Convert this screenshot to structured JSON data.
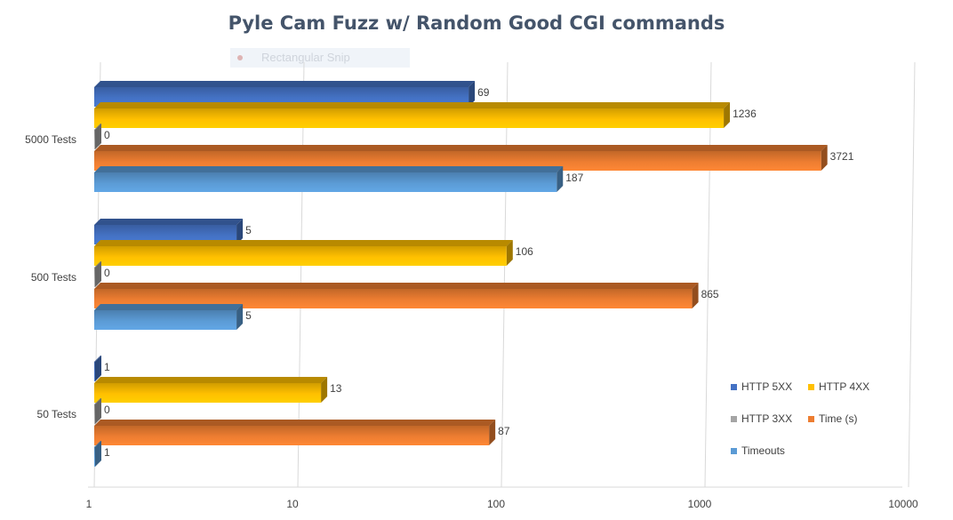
{
  "overlay": {
    "ghost_label": "Rectangular Snip"
  },
  "chart_data": {
    "type": "bar",
    "orientation": "horizontal",
    "title": "Pyle Cam Fuzz w/ Random Good CGI commands",
    "x_scale": "log",
    "xlim": [
      1,
      10000
    ],
    "x_ticks": [
      1,
      10,
      100,
      1000,
      10000
    ],
    "x_tick_labels": [
      "1",
      "10",
      "100",
      "1000",
      "10000"
    ],
    "categories": [
      "5000 Tests",
      "500 Tests",
      "50 Tests"
    ],
    "series": [
      {
        "name": "HTTP 5XX",
        "color": "#4472c4",
        "values": [
          69,
          5,
          1
        ]
      },
      {
        "name": "HTTP 4XX",
        "color": "#ffc000",
        "values": [
          1236,
          106,
          13
        ]
      },
      {
        "name": "HTTP 3XX",
        "color": "#a5a5a5",
        "values": [
          0,
          0,
          0
        ]
      },
      {
        "name": "Time (s)",
        "color": "#ed7d31",
        "values": [
          3721,
          865,
          87
        ]
      },
      {
        "name": "Timeouts",
        "color": "#5b9bd5",
        "values": [
          187,
          5,
          1
        ]
      }
    ],
    "data_labels": true,
    "grid": true,
    "legend": "bottom-right"
  }
}
